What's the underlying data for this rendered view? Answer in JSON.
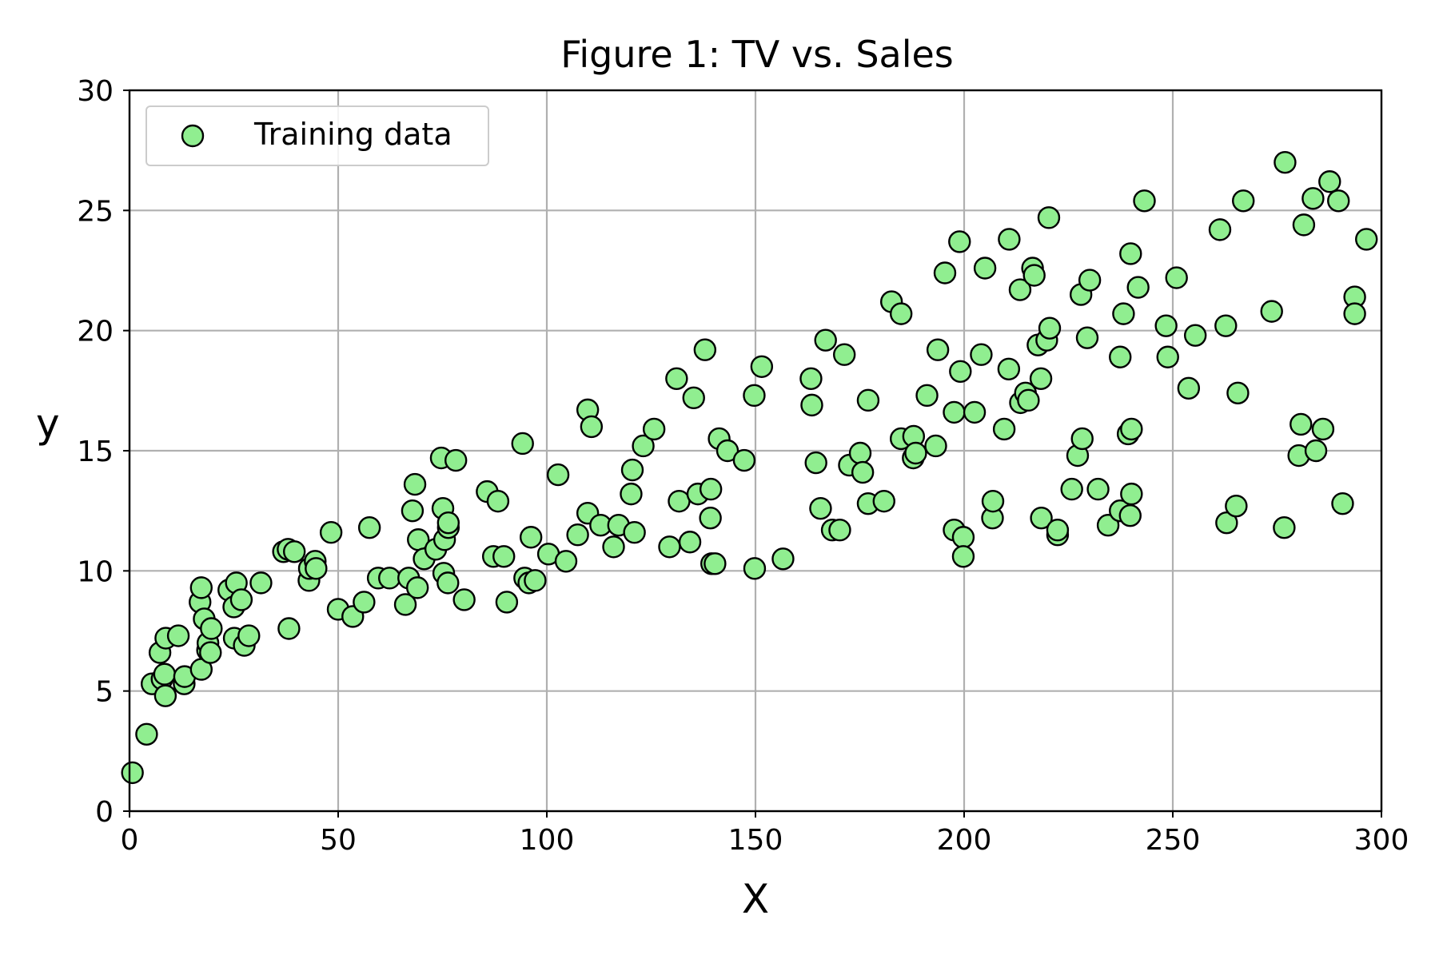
{
  "chart_data": {
    "type": "scatter",
    "title": "Figure 1: TV vs. Sales",
    "xlabel": "X",
    "ylabel": "y",
    "xlim": [
      0,
      300
    ],
    "ylim": [
      0,
      30
    ],
    "xticks": [
      0,
      50,
      100,
      150,
      200,
      250,
      300
    ],
    "yticks": [
      0,
      5,
      10,
      15,
      20,
      25,
      30
    ],
    "grid": true,
    "legend_position": "upper-left",
    "marker_color": "#90ee90",
    "marker_edge_color": "#000000",
    "series": [
      {
        "name": "Training data",
        "points": [
          [
            0.7,
            1.6
          ],
          [
            4.1,
            3.2
          ],
          [
            5.4,
            5.3
          ],
          [
            7.3,
            6.6
          ],
          [
            7.8,
            5.5
          ],
          [
            8.4,
            5.7
          ],
          [
            8.6,
            4.8
          ],
          [
            8.7,
            7.2
          ],
          [
            11.7,
            7.3
          ],
          [
            13.1,
            5.3
          ],
          [
            13.2,
            5.6
          ],
          [
            16.9,
            8.7
          ],
          [
            17.2,
            5.9
          ],
          [
            17.2,
            9.3
          ],
          [
            17.9,
            8.0
          ],
          [
            18.7,
            6.7
          ],
          [
            18.8,
            7.0
          ],
          [
            19.4,
            6.6
          ],
          [
            19.6,
            7.6
          ],
          [
            23.8,
            9.2
          ],
          [
            25.0,
            8.5
          ],
          [
            25.1,
            7.2
          ],
          [
            25.6,
            9.5
          ],
          [
            26.8,
            8.8
          ],
          [
            27.5,
            6.9
          ],
          [
            28.6,
            7.3
          ],
          [
            31.5,
            9.5
          ],
          [
            36.9,
            10.8
          ],
          [
            38.0,
            10.9
          ],
          [
            38.2,
            7.6
          ],
          [
            39.5,
            10.8
          ],
          [
            43.0,
            9.6
          ],
          [
            43.1,
            10.1
          ],
          [
            44.5,
            10.4
          ],
          [
            44.7,
            10.1
          ],
          [
            48.3,
            11.6
          ],
          [
            50.0,
            8.4
          ],
          [
            53.5,
            8.1
          ],
          [
            56.2,
            8.7
          ],
          [
            57.5,
            11.8
          ],
          [
            59.6,
            9.7
          ],
          [
            62.3,
            9.7
          ],
          [
            66.1,
            8.6
          ],
          [
            66.9,
            9.7
          ],
          [
            67.8,
            12.5
          ],
          [
            68.4,
            13.6
          ],
          [
            69.0,
            9.3
          ],
          [
            69.2,
            11.3
          ],
          [
            70.6,
            10.5
          ],
          [
            73.4,
            10.9
          ],
          [
            74.7,
            14.7
          ],
          [
            75.1,
            12.6
          ],
          [
            75.3,
            9.9
          ],
          [
            75.5,
            11.3
          ],
          [
            76.3,
            9.5
          ],
          [
            76.4,
            11.8
          ],
          [
            76.4,
            12.0
          ],
          [
            78.2,
            14.6
          ],
          [
            80.2,
            8.8
          ],
          [
            85.7,
            13.3
          ],
          [
            87.2,
            10.6
          ],
          [
            88.3,
            12.9
          ],
          [
            89.7,
            10.6
          ],
          [
            90.4,
            8.7
          ],
          [
            94.2,
            15.3
          ],
          [
            94.7,
            9.7
          ],
          [
            95.7,
            9.5
          ],
          [
            96.2,
            11.4
          ],
          [
            97.2,
            9.6
          ],
          [
            100.4,
            10.7
          ],
          [
            102.7,
            14.0
          ],
          [
            104.6,
            10.4
          ],
          [
            107.4,
            11.5
          ],
          [
            109.8,
            12.4
          ],
          [
            109.8,
            16.7
          ],
          [
            110.7,
            16.0
          ],
          [
            112.9,
            11.9
          ],
          [
            116.0,
            11.0
          ],
          [
            117.2,
            11.9
          ],
          [
            120.2,
            13.2
          ],
          [
            120.5,
            14.2
          ],
          [
            121.0,
            11.6
          ],
          [
            123.1,
            15.2
          ],
          [
            125.7,
            15.9
          ],
          [
            129.4,
            11.0
          ],
          [
            131.1,
            18.0
          ],
          [
            131.7,
            12.9
          ],
          [
            134.3,
            11.2
          ],
          [
            135.2,
            17.2
          ],
          [
            136.2,
            13.2
          ],
          [
            137.9,
            19.2
          ],
          [
            139.2,
            12.2
          ],
          [
            139.3,
            13.4
          ],
          [
            139.5,
            10.3
          ],
          [
            140.3,
            10.3
          ],
          [
            141.3,
            15.5
          ],
          [
            143.3,
            15.0
          ],
          [
            147.3,
            14.6
          ],
          [
            149.7,
            17.3
          ],
          [
            149.8,
            10.1
          ],
          [
            151.5,
            18.5
          ],
          [
            156.6,
            10.5
          ],
          [
            163.3,
            18.0
          ],
          [
            163.5,
            16.9
          ],
          [
            164.5,
            14.5
          ],
          [
            165.6,
            12.6
          ],
          [
            166.8,
            19.6
          ],
          [
            168.4,
            11.7
          ],
          [
            170.2,
            11.7
          ],
          [
            171.3,
            19.0
          ],
          [
            172.5,
            14.4
          ],
          [
            175.1,
            14.9
          ],
          [
            175.7,
            14.1
          ],
          [
            177.0,
            12.8
          ],
          [
            177.0,
            17.1
          ],
          [
            180.8,
            12.9
          ],
          [
            182.6,
            21.2
          ],
          [
            184.9,
            15.5
          ],
          [
            184.9,
            20.7
          ],
          [
            187.8,
            14.7
          ],
          [
            187.9,
            15.6
          ],
          [
            188.4,
            14.9
          ],
          [
            191.1,
            17.3
          ],
          [
            193.2,
            15.2
          ],
          [
            193.7,
            19.2
          ],
          [
            195.4,
            22.4
          ],
          [
            197.6,
            11.7
          ],
          [
            197.6,
            16.6
          ],
          [
            198.9,
            23.7
          ],
          [
            199.1,
            18.3
          ],
          [
            199.8,
            11.4
          ],
          [
            199.8,
            10.6
          ],
          [
            202.5,
            16.6
          ],
          [
            204.1,
            19.0
          ],
          [
            205.0,
            22.6
          ],
          [
            206.8,
            12.2
          ],
          [
            206.9,
            12.9
          ],
          [
            209.6,
            15.9
          ],
          [
            210.7,
            18.4
          ],
          [
            210.8,
            23.8
          ],
          [
            213.4,
            21.7
          ],
          [
            213.5,
            17.0
          ],
          [
            214.7,
            17.4
          ],
          [
            215.4,
            17.1
          ],
          [
            216.4,
            22.6
          ],
          [
            216.8,
            22.3
          ],
          [
            217.7,
            19.4
          ],
          [
            218.4,
            18.0
          ],
          [
            218.5,
            12.2
          ],
          [
            219.8,
            19.6
          ],
          [
            220.3,
            24.7
          ],
          [
            220.5,
            20.1
          ],
          [
            222.4,
            11.5
          ],
          [
            222.4,
            11.7
          ],
          [
            225.8,
            13.4
          ],
          [
            227.2,
            14.8
          ],
          [
            228.0,
            21.5
          ],
          [
            228.3,
            15.5
          ],
          [
            229.5,
            19.7
          ],
          [
            230.1,
            22.1
          ],
          [
            232.1,
            13.4
          ],
          [
            234.5,
            11.9
          ],
          [
            237.4,
            12.5
          ],
          [
            237.4,
            18.9
          ],
          [
            238.2,
            20.7
          ],
          [
            239.3,
            15.7
          ],
          [
            239.8,
            12.3
          ],
          [
            240.1,
            13.2
          ],
          [
            240.1,
            15.9
          ],
          [
            239.9,
            23.2
          ],
          [
            241.7,
            21.8
          ],
          [
            243.2,
            25.4
          ],
          [
            248.4,
            20.2
          ],
          [
            248.8,
            18.9
          ],
          [
            250.9,
            22.2
          ],
          [
            253.8,
            17.6
          ],
          [
            255.4,
            19.8
          ],
          [
            261.3,
            24.2
          ],
          [
            262.7,
            20.2
          ],
          [
            262.9,
            12.0
          ],
          [
            265.2,
            12.7
          ],
          [
            265.6,
            17.4
          ],
          [
            266.9,
            25.4
          ],
          [
            273.7,
            20.8
          ],
          [
            276.7,
            11.8
          ],
          [
            276.9,
            27.0
          ],
          [
            280.2,
            14.8
          ],
          [
            280.7,
            16.1
          ],
          [
            281.4,
            24.4
          ],
          [
            283.6,
            25.5
          ],
          [
            284.3,
            15.0
          ],
          [
            286.0,
            15.9
          ],
          [
            287.6,
            26.2
          ],
          [
            289.7,
            25.4
          ],
          [
            290.7,
            12.8
          ],
          [
            293.6,
            21.4
          ],
          [
            293.6,
            20.7
          ],
          [
            296.4,
            23.8
          ]
        ]
      }
    ]
  }
}
